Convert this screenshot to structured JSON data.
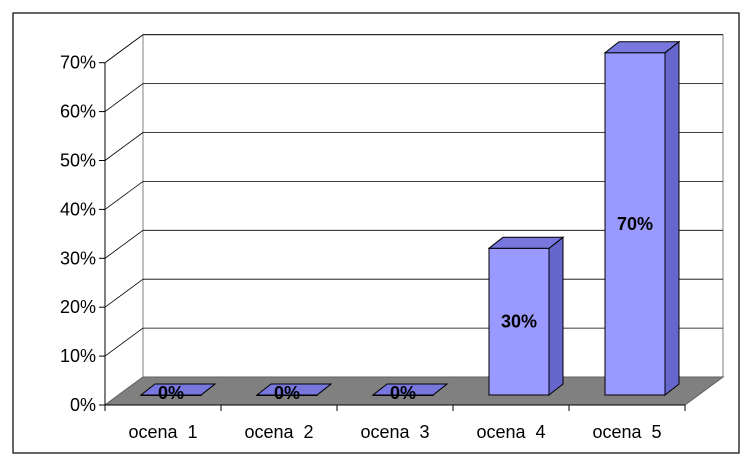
{
  "chart_data": {
    "type": "bar",
    "categories": [
      "ocena  1",
      "ocena  2",
      "ocena  3",
      "ocena  4",
      "ocena  5"
    ],
    "values": [
      0,
      0,
      0,
      30,
      70
    ],
    "data_labels": [
      "0%",
      "0%",
      "0%",
      "30%",
      "70%"
    ],
    "y_ticks": [
      "0%",
      "10%",
      "20%",
      "30%",
      "40%",
      "50%",
      "60%",
      "70%"
    ],
    "ylim": [
      0,
      70
    ],
    "grid": true,
    "legend": "none",
    "three_d": true,
    "colors": {
      "bar_front": "#9999ff",
      "bar_side": "#6666cc",
      "bar_top": "#7777dd",
      "floor": "#808080",
      "plot_back": "#ffffff",
      "grid": "#000000"
    }
  }
}
